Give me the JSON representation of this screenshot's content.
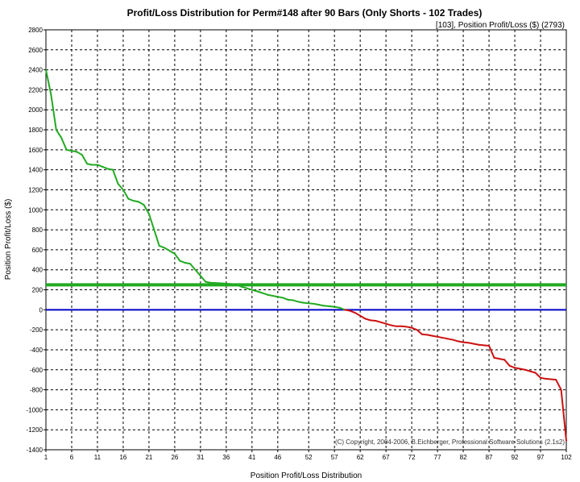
{
  "chart_data": {
    "type": "line",
    "title": "Profit/Loss Distribution for Perm#148 after 90 Bars (Only Shorts - 102 Trades)",
    "readout": "[103],   Position Profit/Loss ($) (2793)",
    "xlabel": "Position Profit/Loss Distribution",
    "ylabel": "Position Profit/Loss ($)",
    "copyright": "(C) Copyright, 2004-2006, B.Eichberger, Professional Software Solutions (2.1s2)",
    "xlim": [
      1,
      102
    ],
    "ylim": [
      -1400,
      2800
    ],
    "x_ticks": [
      1,
      6,
      11,
      16,
      21,
      26,
      31,
      36,
      41,
      46,
      52,
      57,
      62,
      67,
      72,
      77,
      82,
      87,
      92,
      97,
      102
    ],
    "y_ticks": [
      -1400,
      -1200,
      -1000,
      -800,
      -600,
      -400,
      -200,
      0,
      200,
      400,
      600,
      800,
      1000,
      1200,
      1400,
      1600,
      1800,
      2000,
      2200,
      2400,
      2600,
      2800
    ],
    "grid": true,
    "reference_lines": [
      {
        "value": 250,
        "color": "#22aa22"
      },
      {
        "value": 0,
        "color": "#0000cc"
      }
    ],
    "positive_color": "#22aa22",
    "negative_color": "#cc1111",
    "series": [
      {
        "values": [
          2400,
          2150,
          1800,
          1720,
          1600,
          1590,
          1580,
          1550,
          1460,
          1450,
          1450,
          1430,
          1410,
          1400,
          1260,
          1200,
          1110,
          1090,
          1080,
          1050,
          960,
          800,
          640,
          620,
          590,
          560,
          490,
          470,
          460,
          400,
          340,
          280,
          270,
          268,
          265,
          262,
          258,
          250,
          230,
          215,
          200,
          185,
          168,
          150,
          140,
          130,
          120,
          100,
          95,
          80,
          70,
          65,
          60,
          50,
          40,
          35,
          30,
          20,
          0,
          -10,
          -30,
          -60,
          -90,
          -105,
          -110,
          -125,
          -140,
          -155,
          -165,
          -165,
          -170,
          -180,
          -200,
          -245,
          -250,
          -260,
          -270,
          -280,
          -290,
          -300,
          -315,
          -325,
          -330,
          -340,
          -350,
          -355,
          -360,
          -480,
          -490,
          -500,
          -560,
          -580,
          -590,
          -600,
          -615,
          -630,
          -680,
          -690,
          -695,
          -700,
          -800,
          -1310
        ]
      }
    ]
  }
}
